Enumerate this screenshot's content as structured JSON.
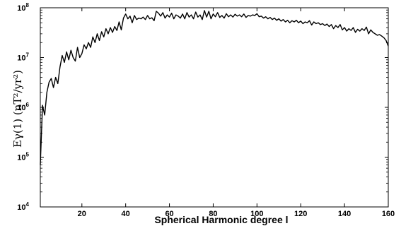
{
  "chart_data": {
    "type": "line",
    "title": "",
    "xlabel": "Spherical Harmonic degree l",
    "ylabel": "Eγ(1) (nT²/yr²)",
    "xlim": [
      1,
      160
    ],
    "ylim": [
      10000,
      100000000
    ],
    "yscale": "log",
    "grid": false,
    "x_ticks": [
      20,
      40,
      60,
      80,
      100,
      120,
      140,
      160
    ],
    "y_ticks": [
      {
        "value": 10000,
        "base": "10",
        "exp": "4"
      },
      {
        "value": 100000,
        "base": "10",
        "exp": "5"
      },
      {
        "value": 1000000,
        "base": "10",
        "exp": "6"
      },
      {
        "value": 10000000,
        "base": "10",
        "exp": "7"
      },
      {
        "value": 100000000,
        "base": "10",
        "exp": "8"
      }
    ],
    "series": [
      {
        "color": "#000000",
        "x": [
          1,
          2,
          3,
          4,
          5,
          6,
          7,
          8,
          9,
          10,
          11,
          12,
          13,
          14,
          15,
          16,
          17,
          18,
          19,
          20,
          21,
          22,
          23,
          24,
          25,
          26,
          27,
          28,
          29,
          30,
          31,
          32,
          33,
          34,
          35,
          36,
          37,
          38,
          39,
          40,
          41,
          42,
          43,
          44,
          45,
          46,
          47,
          48,
          49,
          50,
          51,
          52,
          53,
          54,
          55,
          56,
          57,
          58,
          59,
          60,
          61,
          62,
          63,
          64,
          65,
          66,
          67,
          68,
          69,
          70,
          71,
          72,
          73,
          74,
          75,
          76,
          77,
          78,
          79,
          80,
          81,
          82,
          83,
          84,
          85,
          86,
          87,
          88,
          89,
          90,
          91,
          92,
          93,
          94,
          95,
          96,
          97,
          98,
          99,
          100,
          101,
          102,
          103,
          104,
          105,
          106,
          107,
          108,
          109,
          110,
          111,
          112,
          113,
          114,
          115,
          116,
          117,
          118,
          119,
          120,
          121,
          122,
          123,
          124,
          125,
          126,
          127,
          128,
          129,
          130,
          131,
          132,
          133,
          134,
          135,
          136,
          137,
          138,
          139,
          140,
          141,
          142,
          143,
          144,
          145,
          146,
          147,
          148,
          149,
          150,
          151,
          152,
          153,
          154,
          155,
          156,
          157,
          158,
          159,
          160
        ],
        "y": [
          70000,
          1100000,
          700000,
          2000000,
          3200000,
          3800000,
          2500000,
          4000000,
          3000000,
          6500000,
          11000000,
          8000000,
          13000000,
          9000000,
          14000000,
          10000000,
          8500000,
          16000000,
          10000000,
          12000000,
          18000000,
          15000000,
          20000000,
          16000000,
          26000000,
          20000000,
          30000000,
          22000000,
          33000000,
          26000000,
          38000000,
          30000000,
          40000000,
          32000000,
          42000000,
          35000000,
          52000000,
          36000000,
          62000000,
          75000000,
          60000000,
          68000000,
          50000000,
          70000000,
          58000000,
          62000000,
          60000000,
          65000000,
          58000000,
          70000000,
          60000000,
          63000000,
          55000000,
          85000000,
          78000000,
          68000000,
          80000000,
          62000000,
          72000000,
          65000000,
          78000000,
          60000000,
          72000000,
          68000000,
          62000000,
          75000000,
          60000000,
          80000000,
          65000000,
          72000000,
          60000000,
          82000000,
          65000000,
          72000000,
          58000000,
          88000000,
          65000000,
          85000000,
          60000000,
          75000000,
          66000000,
          80000000,
          64000000,
          70000000,
          62000000,
          76000000,
          66000000,
          72000000,
          65000000,
          74000000,
          68000000,
          72000000,
          66000000,
          75000000,
          64000000,
          70000000,
          68000000,
          72000000,
          70000000,
          76000000,
          66000000,
          68000000,
          62000000,
          66000000,
          60000000,
          64000000,
          58000000,
          62000000,
          56000000,
          60000000,
          54000000,
          58000000,
          52000000,
          56000000,
          50000000,
          55000000,
          52000000,
          56000000,
          50000000,
          54000000,
          48000000,
          52000000,
          50000000,
          55000000,
          45000000,
          52000000,
          48000000,
          50000000,
          46000000,
          48000000,
          44000000,
          47000000,
          42000000,
          46000000,
          38000000,
          44000000,
          40000000,
          46000000,
          36000000,
          40000000,
          34000000,
          38000000,
          35000000,
          40000000,
          32000000,
          37000000,
          34000000,
          38000000,
          35000000,
          41000000,
          30000000,
          36000000,
          32000000,
          30000000,
          28000000,
          29000000,
          27000000,
          25000000,
          22000000,
          17000000
        ]
      }
    ]
  }
}
